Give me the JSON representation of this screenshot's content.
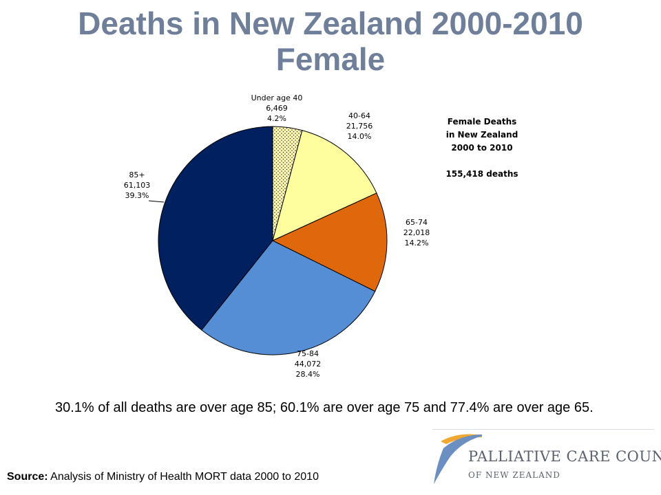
{
  "title": {
    "line1": "Deaths in New Zealand 2000-2010",
    "line2": "Female"
  },
  "chart_data": {
    "type": "pie",
    "total_label": "155,418 deaths",
    "info_lines": [
      "Female Deaths",
      "in New Zealand",
      "2000 to 2010"
    ],
    "slices": [
      {
        "label": "Under age 40",
        "count": "6,469",
        "value": 6469,
        "percent": "4.2%",
        "color": "#fdf8b0",
        "pattern": "dots"
      },
      {
        "label": "40-64",
        "count": "21,756",
        "value": 21756,
        "percent": "14.0%",
        "color": "#fefe9e"
      },
      {
        "label": "65-74",
        "count": "22,018",
        "value": 22018,
        "percent": "14.2%",
        "color": "#e0680c"
      },
      {
        "label": "75-84",
        "count": "44,072",
        "value": 44072,
        "percent": "28.4%",
        "color": "#558ed5"
      },
      {
        "label": "85+",
        "count": "61,103",
        "value": 61103,
        "percent": "39.3%",
        "color": "#002060"
      }
    ]
  },
  "note": "30.1% of all deaths are over age 85; 60.1% are over age 75 and 77.4% are over age 65.",
  "source": {
    "prefix": "Source:",
    "text": " Analysis of Ministry of Health MORT data 2000 to 2010"
  },
  "logo": {
    "main": "PALLIATIVE CARE COUNCIL",
    "sub": "OF NEW ZEALAND",
    "colors": {
      "swoosh_orange": "#f0a830",
      "swoosh_blue": "#6a8fc0",
      "text": "#5a6170"
    }
  }
}
